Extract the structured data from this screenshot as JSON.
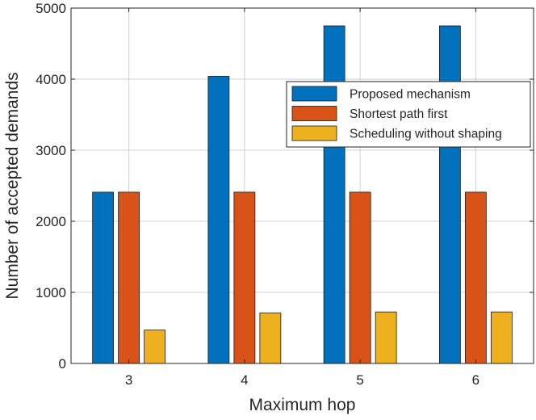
{
  "chart_data": {
    "type": "bar",
    "title": "",
    "xlabel": "Maximum hop",
    "ylabel": "Number of accepted demands",
    "categories": [
      "3",
      "4",
      "5",
      "6"
    ],
    "ylim": [
      0,
      5000
    ],
    "yticks": [
      0,
      1000,
      2000,
      3000,
      4000,
      5000
    ],
    "grid": true,
    "legend_position": "top-right",
    "series": [
      {
        "name": "Proposed mechanism",
        "color": "#0072BD",
        "values": [
          2410,
          4040,
          4750,
          4750
        ]
      },
      {
        "name": "Shortest path first",
        "color": "#D95319",
        "values": [
          2410,
          2410,
          2410,
          2410
        ]
      },
      {
        "name": "Scheduling without shaping",
        "color": "#EDB120",
        "values": [
          470,
          710,
          725,
          725
        ]
      }
    ]
  }
}
